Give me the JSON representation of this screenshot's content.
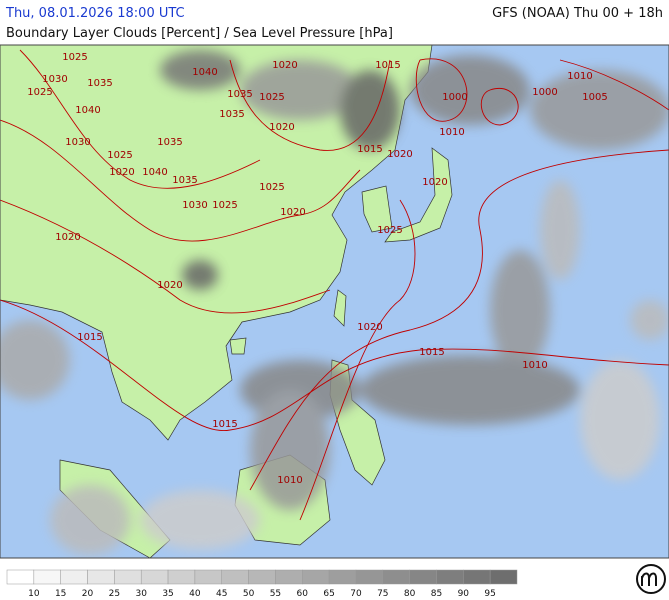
{
  "header": {
    "datetime": "Thu, 08.01.2026 18:00 UTC",
    "model": "GFS (NOAA) Thu 00 + 18h",
    "subtitle": "Boundary Layer Clouds [Percent] / Sea Level Pressure [hPa]"
  },
  "isobar_labels": [
    "1025",
    "1030",
    "1025",
    "1035",
    "1040",
    "1020",
    "1015",
    "1010",
    "1000",
    "1000",
    "1005",
    "1035",
    "1025",
    "1040",
    "1035",
    "1020",
    "1010",
    "1030",
    "1035",
    "1015",
    "1020",
    "1025",
    "1020",
    "1040",
    "1035",
    "1025",
    "1020",
    "1030",
    "1025",
    "1020",
    "1025",
    "1020",
    "1020",
    "1015",
    "1020",
    "1015",
    "1010",
    "1015",
    "1010"
  ],
  "legend": {
    "labels": [
      "10",
      "15",
      "20",
      "25",
      "30",
      "35",
      "40",
      "45",
      "50",
      "55",
      "60",
      "65",
      "70",
      "75",
      "80",
      "85",
      "90",
      "95"
    ]
  }
}
